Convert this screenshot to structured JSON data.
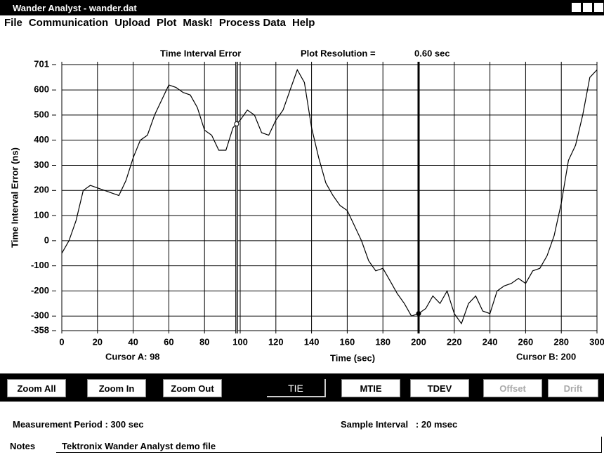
{
  "window": {
    "title": "Wander Analyst - wander.dat"
  },
  "menu": [
    "File",
    "Communication",
    "Upload",
    "Plot",
    "Mask!",
    "Process Data",
    "Help"
  ],
  "chart_data": {
    "type": "line",
    "title": "Time Interval Error",
    "resolution_label": "Plot Resolution =",
    "resolution_value": "0.60 sec",
    "ylabel": "Time Interval Error (ns)",
    "xlabel": "Time (sec)",
    "color": "#000000",
    "grid": true,
    "xlim": [
      0,
      300
    ],
    "xticks": [
      0,
      20,
      40,
      60,
      80,
      100,
      120,
      140,
      160,
      180,
      200,
      220,
      240,
      260,
      280,
      300
    ],
    "ylim": [
      -358,
      701
    ],
    "yticks": [
      701,
      600,
      500,
      400,
      300,
      200,
      100,
      0,
      -100,
      -200,
      -300,
      -358
    ],
    "x": [
      0,
      4,
      8,
      12,
      16,
      20,
      24,
      28,
      32,
      36,
      40,
      44,
      48,
      52,
      56,
      60,
      64,
      68,
      72,
      76,
      80,
      84,
      88,
      92,
      96,
      100,
      104,
      108,
      112,
      116,
      120,
      124,
      128,
      132,
      136,
      140,
      144,
      148,
      152,
      156,
      160,
      164,
      168,
      172,
      176,
      180,
      184,
      188,
      192,
      196,
      200,
      204,
      208,
      212,
      216,
      220,
      224,
      228,
      232,
      236,
      240,
      244,
      248,
      252,
      256,
      260,
      264,
      268,
      272,
      276,
      280,
      284,
      288,
      292,
      296,
      300
    ],
    "values": [
      -50,
      0,
      80,
      200,
      220,
      210,
      200,
      190,
      180,
      240,
      330,
      400,
      420,
      500,
      560,
      620,
      610,
      590,
      580,
      530,
      440,
      420,
      360,
      360,
      450,
      480,
      520,
      500,
      430,
      420,
      480,
      520,
      600,
      680,
      630,
      450,
      330,
      230,
      180,
      140,
      120,
      60,
      0,
      -80,
      -120,
      -110,
      -160,
      -210,
      -250,
      -300,
      -290,
      -270,
      -220,
      -250,
      -200,
      -290,
      -330,
      -250,
      -220,
      -280,
      -290,
      -200,
      -180,
      -170,
      -150,
      -170,
      -120,
      -110,
      -60,
      20,
      150,
      320,
      380,
      500,
      650,
      680
    ],
    "cursors": [
      {
        "label": "Cursor A: 98",
        "value": 98
      },
      {
        "label": "Cursor B: 200",
        "value": 200
      }
    ]
  },
  "toolbar": [
    "Zoom All",
    "Zoom In",
    "Zoom Out",
    "TIE",
    "MTIE",
    "TDEV",
    "Offset",
    "Drift"
  ],
  "status": {
    "measurement": "Measurement Period : 300 sec",
    "sample": "Sample Interval   : 20 msec",
    "notes_label": "Notes",
    "notes": "Tektronix Wander Analyst demo file"
  }
}
